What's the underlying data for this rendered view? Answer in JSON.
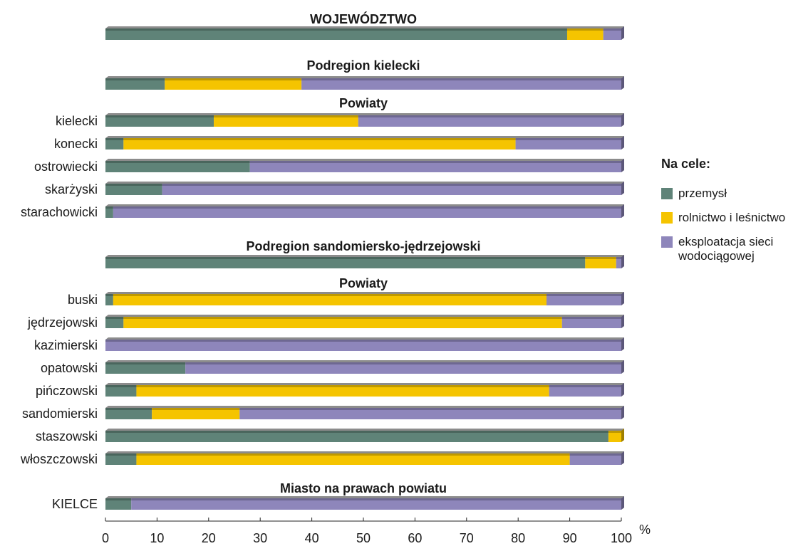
{
  "chart_data": {
    "type": "bar",
    "orientation": "horizontal",
    "stacked": true,
    "x_axis": {
      "min": 0,
      "max": 100,
      "ticks": [
        "0",
        "10",
        "20",
        "30",
        "40",
        "50",
        "60",
        "70",
        "80",
        "90",
        "100"
      ],
      "unit": "%"
    },
    "legend": {
      "title": "Na cele:",
      "placement": "right",
      "items": [
        {
          "key": "przemysl",
          "label": "przemysł",
          "color": "#5f8378"
        },
        {
          "key": "rolnictwo",
          "label": "rolnictwo i leśnictwo",
          "color": "#f5c400"
        },
        {
          "key": "siec",
          "label": "eksploatacja sieci wodociągowej",
          "color": "#8e86bb"
        }
      ]
    },
    "sections": [
      {
        "header": "WOJEWÓDZTWO",
        "rows": [
          {
            "label": "",
            "values": [
              89.5,
              7.0,
              3.5
            ]
          }
        ]
      },
      {
        "header": "Podregion kielecki",
        "rows": [
          {
            "label": "",
            "values": [
              11.5,
              26.5,
              62.0
            ]
          }
        ]
      },
      {
        "header": "Powiaty",
        "rows": [
          {
            "label": "kielecki",
            "values": [
              21.0,
              28.0,
              51.0
            ]
          },
          {
            "label": "konecki",
            "values": [
              3.5,
              76.0,
              20.5
            ]
          },
          {
            "label": "ostrowiecki",
            "values": [
              28.0,
              0.0,
              72.0
            ]
          },
          {
            "label": "skarżyski",
            "values": [
              11.0,
              0.0,
              89.0
            ]
          },
          {
            "label": "starachowicki",
            "values": [
              1.5,
              0.0,
              98.5
            ]
          }
        ]
      },
      {
        "header": "Podregion sandomiersko-jędrzejowski",
        "rows": [
          {
            "label": "",
            "values": [
              93.0,
              6.0,
              1.0
            ]
          }
        ]
      },
      {
        "header": "Powiaty",
        "rows": [
          {
            "label": "buski",
            "values": [
              1.5,
              84.0,
              14.5
            ]
          },
          {
            "label": "jędrzejowski",
            "values": [
              3.5,
              85.0,
              11.5
            ]
          },
          {
            "label": "kazimierski",
            "values": [
              0.0,
              0.0,
              100.0
            ]
          },
          {
            "label": "opatowski",
            "values": [
              15.5,
              0.0,
              84.5
            ]
          },
          {
            "label": "pińczowski",
            "values": [
              6.0,
              80.0,
              14.0
            ]
          },
          {
            "label": "sandomierski",
            "values": [
              9.0,
              17.0,
              74.0
            ]
          },
          {
            "label": "staszowski",
            "values": [
              97.5,
              2.5,
              0.0
            ]
          },
          {
            "label": "włoszczowski",
            "values": [
              6.0,
              84.0,
              10.0
            ]
          }
        ]
      },
      {
        "header": "Miasto na prawach powiatu",
        "rows": [
          {
            "label": "KIELCE",
            "values": [
              5.0,
              0.0,
              95.0
            ]
          }
        ]
      }
    ]
  }
}
